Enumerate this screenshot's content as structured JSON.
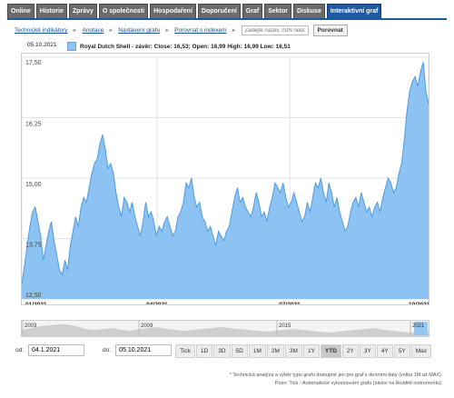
{
  "tabs": [
    "Online",
    "Historie",
    "Zprávy",
    "O společnosti",
    "Hospodaření",
    "Doporučení",
    "Graf",
    "Sektor",
    "Diskuse",
    "Interaktivní graf"
  ],
  "active_tab": "Interaktivní graf",
  "toolbar": {
    "indicators": "Technické indikátory",
    "annotations": "Anotace",
    "settings": "Nastavení grafu",
    "compare_index": "Porovnat s indexem",
    "search_placeholder": "Zadejte název, ISIN nebo",
    "compare_button": "Porovnat"
  },
  "current_date": "05.10.2021",
  "legend_text": "Royal Dutch Shell - závěr: Close: 16,53; Open: 16,99 High: 16,99 Low: 16,51",
  "colors": {
    "area_fill": "#8cc3f2",
    "area_stroke": "#4f9be0",
    "tab_active": "#1d5aa6"
  },
  "chart_data": {
    "type": "area",
    "series_name": "Royal Dutch Shell - závěr",
    "ylim": [
      12.5,
      17.5
    ],
    "y_ticks": [
      "12,50",
      "13,75",
      "15,00",
      "16,25",
      "17,50"
    ],
    "x_ticks": [
      "01/2021",
      "04/2021",
      "07/2021",
      "10/2021"
    ],
    "x_start": "2021-01-04",
    "x_end": "2021-10-05",
    "values": [
      12.8,
      13.2,
      13.6,
      14.0,
      14.3,
      14.4,
      14.1,
      13.8,
      13.3,
      13.6,
      13.9,
      14.1,
      13.7,
      13.4,
      13.1,
      13.0,
      13.3,
      13.1,
      13.6,
      13.9,
      14.2,
      14.0,
      14.4,
      14.6,
      14.5,
      14.8,
      15.1,
      15.3,
      15.4,
      15.7,
      15.9,
      15.6,
      15.2,
      15.3,
      15.1,
      14.7,
      14.4,
      14.2,
      14.6,
      14.5,
      14.3,
      14.5,
      14.2,
      14.0,
      13.8,
      14.1,
      14.5,
      14.2,
      14.3,
      14.1,
      13.8,
      14.0,
      13.9,
      14.1,
      14.2,
      14.0,
      13.8,
      13.9,
      14.2,
      14.3,
      14.5,
      14.9,
      14.8,
      15.0,
      14.6,
      14.4,
      14.5,
      14.2,
      14.1,
      13.9,
      14.0,
      13.8,
      13.6,
      13.9,
      13.8,
      13.7,
      13.9,
      14.0,
      14.3,
      14.6,
      14.8,
      14.5,
      14.6,
      14.4,
      14.3,
      14.2,
      14.4,
      14.7,
      14.5,
      14.2,
      14.3,
      14.1,
      14.4,
      14.6,
      14.9,
      14.8,
      14.7,
      14.9,
      14.6,
      14.4,
      14.5,
      14.7,
      14.5,
      14.3,
      14.1,
      14.2,
      14.5,
      14.3,
      14.6,
      14.9,
      14.8,
      15.0,
      14.7,
      14.5,
      14.9,
      14.7,
      14.4,
      14.6,
      14.3,
      14.1,
      13.9,
      14.0,
      14.3,
      14.5,
      14.6,
      14.4,
      14.7,
      14.5,
      14.3,
      14.4,
      14.2,
      14.4,
      14.5,
      14.3,
      14.6,
      14.8,
      15.0,
      14.9,
      14.7,
      14.8,
      15.1,
      15.3,
      15.8,
      16.4,
      16.8,
      17.0,
      17.1,
      16.9,
      17.2,
      17.4,
      16.8,
      16.53
    ]
  },
  "navigator": {
    "year_labels": [
      "2003",
      "2009",
      "2015",
      "2021"
    ]
  },
  "date_range": {
    "from_label": "od:",
    "from_value": "04.1.2021",
    "to_label": "do:",
    "to_value": "05.10.2021"
  },
  "range_buttons": [
    "Tick",
    "1D",
    "3D",
    "5D",
    "1M",
    "2M",
    "3M",
    "1Y",
    "YTD",
    "2Y",
    "3Y",
    "4Y",
    "5Y",
    "Max"
  ],
  "active_range": "YTD",
  "footnotes": [
    "* Technická analýza a výběr typu grafu dostupné jen pro graf s denními daty (volba 1M až MAX)",
    "Pozn: Tick - Automatické vykreslování grafu (závisí na likviditě instrumentu)"
  ]
}
